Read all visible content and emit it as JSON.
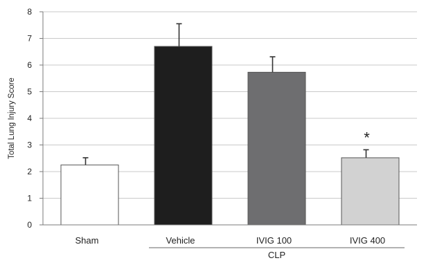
{
  "chart_data": {
    "type": "bar",
    "title": "",
    "xlabel": "",
    "ylabel": "Total Lung Injury Score",
    "ylim": [
      0,
      8
    ],
    "yticks": [
      0,
      1,
      2,
      3,
      4,
      5,
      6,
      7,
      8
    ],
    "grid": true,
    "categories": [
      "Sham",
      "Vehicle",
      "IVIG 100",
      "IVIG 400"
    ],
    "values": [
      2.25,
      6.7,
      5.73,
      2.52
    ],
    "errors": [
      0.27,
      0.85,
      0.58,
      0.3
    ],
    "colors": [
      "#ffffff",
      "#1e1e1e",
      "#6e6e70",
      "#d2d2d2"
    ],
    "annotations": [
      {
        "category": "IVIG 400",
        "text": "*"
      }
    ],
    "group_label": {
      "text": "CLP",
      "categories": [
        "Vehicle",
        "IVIG 100",
        "IVIG 400"
      ]
    }
  }
}
